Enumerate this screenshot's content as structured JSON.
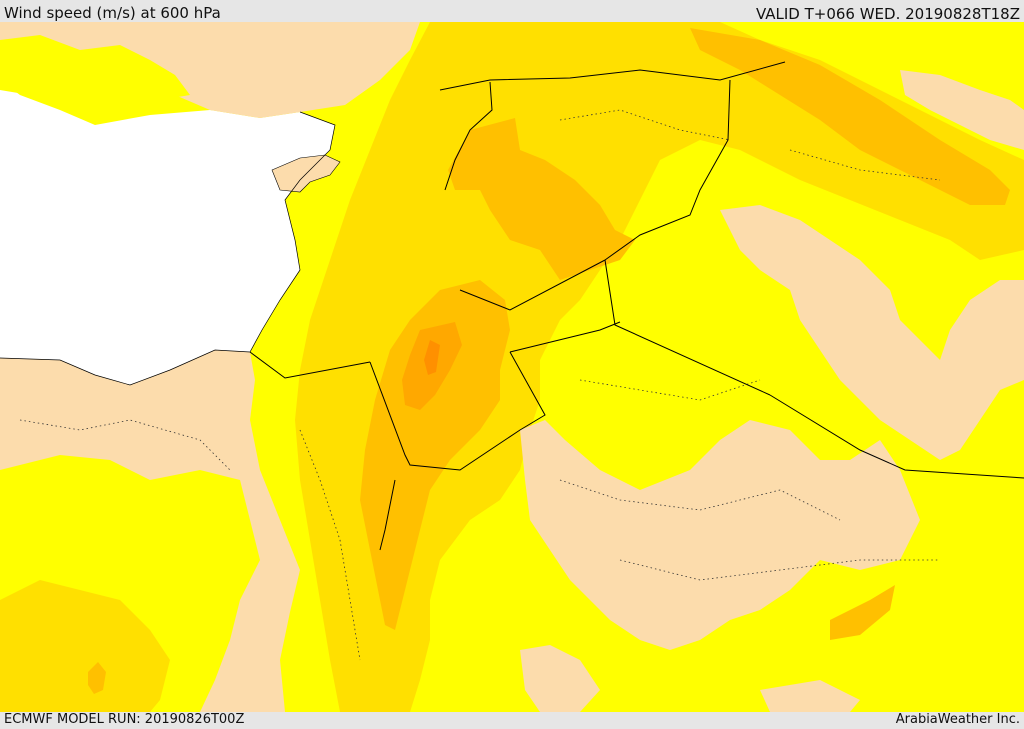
{
  "header": {
    "title_left": "Wind speed (m/s) at 600 hPa",
    "title_right": "VALID T+066 WED. 20190828T18Z"
  },
  "footer": {
    "model_run": "ECMWF MODEL RUN: 20190826T00Z",
    "credit": "ArabiaWeather Inc."
  },
  "colors": {
    "sea": "#ffffff",
    "speed_band_lowest": "#fcdcac",
    "speed_band_low": "#ffff00",
    "speed_band_mid": "#ffe000",
    "speed_band_high": "#ffc000",
    "speed_band_higher": "#ffa800",
    "speed_band_highest": "#ff9000",
    "border_line": "#000000"
  }
}
